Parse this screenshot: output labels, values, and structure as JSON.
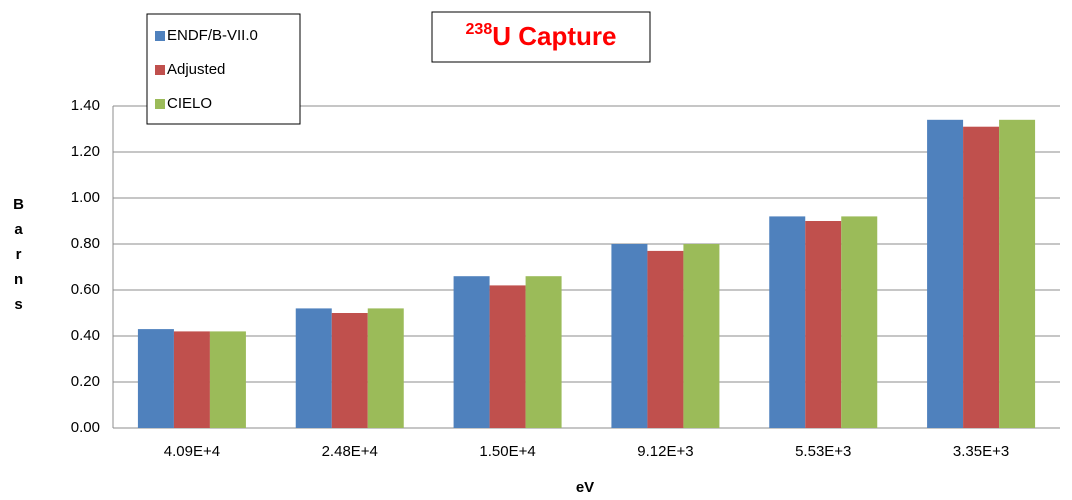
{
  "chart_data": {
    "type": "bar",
    "title": {
      "sup": "238",
      "main": "U Capture"
    },
    "xlabel": "eV",
    "ylabel": "Barns",
    "categories": [
      "4.09E+4",
      "2.48E+4",
      "1.50E+4",
      "9.12E+3",
      "5.53E+3",
      "3.35E+3"
    ],
    "series": [
      {
        "name": "ENDF/B-VII.0",
        "color": "#4f81bd",
        "values": [
          0.43,
          0.52,
          0.66,
          0.8,
          0.92,
          1.34
        ]
      },
      {
        "name": "Adjusted",
        "color": "#c0504d",
        "values": [
          0.42,
          0.5,
          0.62,
          0.77,
          0.9,
          1.31
        ]
      },
      {
        "name": "CIELO",
        "color": "#9bbb59",
        "values": [
          0.42,
          0.52,
          0.66,
          0.8,
          0.92,
          1.34
        ]
      }
    ],
    "ylim": [
      0,
      1.4
    ],
    "yticks": [
      {
        "value": 0,
        "label": "0.00"
      },
      {
        "value": 0.2,
        "label": "0.20"
      },
      {
        "value": 0.4,
        "label": "0.40"
      },
      {
        "value": 0.6,
        "label": "0.60"
      },
      {
        "value": 0.8,
        "label": "0.80"
      },
      {
        "value": 1.0,
        "label": "1.00"
      },
      {
        "value": 1.2,
        "label": "1.20"
      },
      {
        "value": 1.4,
        "label": "1.40"
      }
    ],
    "grid": true,
    "legend": "top-left"
  }
}
